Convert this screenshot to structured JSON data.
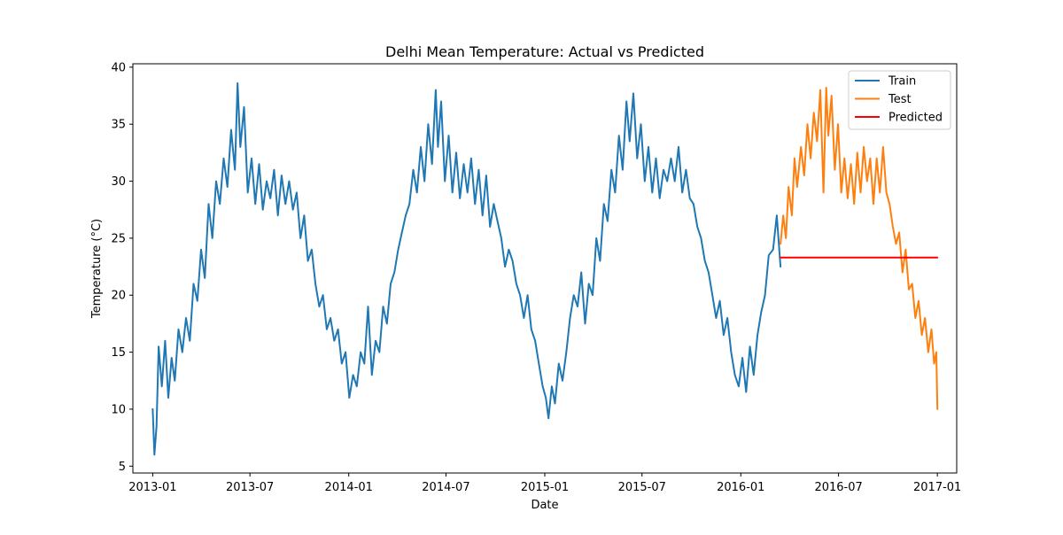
{
  "chart_data": {
    "type": "line",
    "title": "Delhi Mean Temperature: Actual vs Predicted",
    "xlabel": "Date",
    "ylabel": "Temperature (°C)",
    "x_range": [
      "2012-11-25",
      "2017-02-06"
    ],
    "ylim": [
      4.4,
      40.3
    ],
    "y_ticks": [
      5,
      10,
      15,
      20,
      25,
      30,
      35,
      40
    ],
    "x_ticks": [
      {
        "date": "2013-01-01",
        "label": "2013-01"
      },
      {
        "date": "2013-07-01",
        "label": "2013-07"
      },
      {
        "date": "2014-01-01",
        "label": "2014-01"
      },
      {
        "date": "2014-07-01",
        "label": "2014-07"
      },
      {
        "date": "2015-01-01",
        "label": "2015-01"
      },
      {
        "date": "2015-07-01",
        "label": "2015-07"
      },
      {
        "date": "2016-01-01",
        "label": "2016-01"
      },
      {
        "date": "2016-07-01",
        "label": "2016-07"
      },
      {
        "date": "2017-01-01",
        "label": "2017-01"
      }
    ],
    "grid": false,
    "legend_position": "top-right",
    "series": [
      {
        "name": "Train",
        "color": "#1f77b4",
        "points": [
          [
            "2013-01-01",
            10.0
          ],
          [
            "2013-01-04",
            6.0
          ],
          [
            "2013-01-08",
            8.5
          ],
          [
            "2013-01-12",
            15.5
          ],
          [
            "2013-01-18",
            12.0
          ],
          [
            "2013-01-24",
            16.0
          ],
          [
            "2013-01-30",
            11.0
          ],
          [
            "2013-02-05",
            14.5
          ],
          [
            "2013-02-11",
            12.5
          ],
          [
            "2013-02-18",
            17.0
          ],
          [
            "2013-02-25",
            15.0
          ],
          [
            "2013-03-04",
            18.0
          ],
          [
            "2013-03-11",
            16.0
          ],
          [
            "2013-03-18",
            21.0
          ],
          [
            "2013-03-25",
            19.5
          ],
          [
            "2013-04-01",
            24.0
          ],
          [
            "2013-04-08",
            21.5
          ],
          [
            "2013-04-15",
            28.0
          ],
          [
            "2013-04-22",
            25.0
          ],
          [
            "2013-04-29",
            30.0
          ],
          [
            "2013-05-06",
            28.0
          ],
          [
            "2013-05-13",
            32.0
          ],
          [
            "2013-05-20",
            29.5
          ],
          [
            "2013-05-27",
            34.5
          ],
          [
            "2013-06-03",
            31.0
          ],
          [
            "2013-06-08",
            38.6
          ],
          [
            "2013-06-13",
            33.0
          ],
          [
            "2013-06-20",
            36.5
          ],
          [
            "2013-06-27",
            29.0
          ],
          [
            "2013-07-04",
            32.0
          ],
          [
            "2013-07-11",
            28.0
          ],
          [
            "2013-07-18",
            31.5
          ],
          [
            "2013-07-25",
            27.5
          ],
          [
            "2013-08-01",
            30.0
          ],
          [
            "2013-08-08",
            28.5
          ],
          [
            "2013-08-15",
            31.0
          ],
          [
            "2013-08-22",
            27.0
          ],
          [
            "2013-08-29",
            30.5
          ],
          [
            "2013-09-05",
            28.0
          ],
          [
            "2013-09-12",
            30.0
          ],
          [
            "2013-09-19",
            27.5
          ],
          [
            "2013-09-26",
            29.0
          ],
          [
            "2013-10-03",
            25.0
          ],
          [
            "2013-10-10",
            27.0
          ],
          [
            "2013-10-17",
            23.0
          ],
          [
            "2013-10-24",
            24.0
          ],
          [
            "2013-10-31",
            21.0
          ],
          [
            "2013-11-07",
            19.0
          ],
          [
            "2013-11-14",
            20.0
          ],
          [
            "2013-11-21",
            17.0
          ],
          [
            "2013-11-28",
            18.0
          ],
          [
            "2013-12-05",
            16.0
          ],
          [
            "2013-12-12",
            17.0
          ],
          [
            "2013-12-19",
            14.0
          ],
          [
            "2013-12-26",
            15.0
          ],
          [
            "2014-01-02",
            11.0
          ],
          [
            "2014-01-09",
            13.0
          ],
          [
            "2014-01-16",
            12.0
          ],
          [
            "2014-01-23",
            15.0
          ],
          [
            "2014-01-30",
            14.0
          ],
          [
            "2014-02-06",
            19.0
          ],
          [
            "2014-02-13",
            13.0
          ],
          [
            "2014-02-20",
            16.0
          ],
          [
            "2014-02-27",
            15.0
          ],
          [
            "2014-03-06",
            19.0
          ],
          [
            "2014-03-13",
            17.5
          ],
          [
            "2014-03-20",
            21.0
          ],
          [
            "2014-03-27",
            22.0
          ],
          [
            "2014-04-03",
            24.0
          ],
          [
            "2014-04-10",
            25.5
          ],
          [
            "2014-04-17",
            27.0
          ],
          [
            "2014-04-24",
            28.0
          ],
          [
            "2014-05-01",
            31.0
          ],
          [
            "2014-05-08",
            29.0
          ],
          [
            "2014-05-15",
            33.0
          ],
          [
            "2014-05-22",
            30.0
          ],
          [
            "2014-05-29",
            35.0
          ],
          [
            "2014-06-05",
            31.5
          ],
          [
            "2014-06-12",
            38.0
          ],
          [
            "2014-06-16",
            33.0
          ],
          [
            "2014-06-22",
            37.0
          ],
          [
            "2014-06-29",
            30.0
          ],
          [
            "2014-07-06",
            34.0
          ],
          [
            "2014-07-13",
            29.0
          ],
          [
            "2014-07-20",
            32.5
          ],
          [
            "2014-07-27",
            28.5
          ],
          [
            "2014-08-03",
            31.5
          ],
          [
            "2014-08-10",
            29.0
          ],
          [
            "2014-08-17",
            32.0
          ],
          [
            "2014-08-24",
            28.0
          ],
          [
            "2014-08-31",
            31.0
          ],
          [
            "2014-09-07",
            27.0
          ],
          [
            "2014-09-14",
            30.5
          ],
          [
            "2014-09-21",
            26.0
          ],
          [
            "2014-09-28",
            28.0
          ],
          [
            "2014-10-05",
            26.5
          ],
          [
            "2014-10-12",
            25.0
          ],
          [
            "2014-10-19",
            22.5
          ],
          [
            "2014-10-26",
            24.0
          ],
          [
            "2014-11-02",
            23.0
          ],
          [
            "2014-11-09",
            21.0
          ],
          [
            "2014-11-16",
            20.0
          ],
          [
            "2014-11-23",
            18.0
          ],
          [
            "2014-11-30",
            20.0
          ],
          [
            "2014-12-07",
            17.0
          ],
          [
            "2014-12-14",
            16.0
          ],
          [
            "2014-12-21",
            14.0
          ],
          [
            "2014-12-28",
            12.0
          ],
          [
            "2015-01-03",
            11.0
          ],
          [
            "2015-01-08",
            9.2
          ],
          [
            "2015-01-14",
            12.0
          ],
          [
            "2015-01-20",
            10.5
          ],
          [
            "2015-01-27",
            14.0
          ],
          [
            "2015-02-03",
            12.5
          ],
          [
            "2015-02-10",
            15.0
          ],
          [
            "2015-02-17",
            18.0
          ],
          [
            "2015-02-24",
            20.0
          ],
          [
            "2015-03-03",
            19.0
          ],
          [
            "2015-03-10",
            22.0
          ],
          [
            "2015-03-17",
            17.5
          ],
          [
            "2015-03-24",
            21.0
          ],
          [
            "2015-03-31",
            20.0
          ],
          [
            "2015-04-07",
            25.0
          ],
          [
            "2015-04-14",
            23.0
          ],
          [
            "2015-04-21",
            28.0
          ],
          [
            "2015-04-28",
            26.5
          ],
          [
            "2015-05-05",
            31.0
          ],
          [
            "2015-05-12",
            29.0
          ],
          [
            "2015-05-19",
            34.0
          ],
          [
            "2015-05-26",
            31.0
          ],
          [
            "2015-06-02",
            37.0
          ],
          [
            "2015-06-08",
            33.5
          ],
          [
            "2015-06-15",
            37.7
          ],
          [
            "2015-06-22",
            32.0
          ],
          [
            "2015-06-29",
            35.0
          ],
          [
            "2015-07-06",
            30.0
          ],
          [
            "2015-07-13",
            33.0
          ],
          [
            "2015-07-20",
            29.0
          ],
          [
            "2015-07-27",
            32.0
          ],
          [
            "2015-08-03",
            28.5
          ],
          [
            "2015-08-10",
            31.0
          ],
          [
            "2015-08-17",
            30.0
          ],
          [
            "2015-08-24",
            32.0
          ],
          [
            "2015-08-31",
            30.0
          ],
          [
            "2015-09-07",
            33.0
          ],
          [
            "2015-09-14",
            29.0
          ],
          [
            "2015-09-21",
            31.0
          ],
          [
            "2015-09-28",
            28.5
          ],
          [
            "2015-10-05",
            28.0
          ],
          [
            "2015-10-12",
            26.0
          ],
          [
            "2015-10-19",
            25.0
          ],
          [
            "2015-10-26",
            23.0
          ],
          [
            "2015-11-02",
            22.0
          ],
          [
            "2015-11-09",
            20.0
          ],
          [
            "2015-11-16",
            18.0
          ],
          [
            "2015-11-23",
            19.5
          ],
          [
            "2015-11-30",
            16.5
          ],
          [
            "2015-12-07",
            18.0
          ],
          [
            "2015-12-14",
            15.0
          ],
          [
            "2015-12-21",
            13.0
          ],
          [
            "2015-12-28",
            12.0
          ],
          [
            "2016-01-04",
            14.5
          ],
          [
            "2016-01-11",
            11.5
          ],
          [
            "2016-01-18",
            15.5
          ],
          [
            "2016-01-25",
            13.0
          ],
          [
            "2016-02-01",
            16.5
          ],
          [
            "2016-02-08",
            18.5
          ],
          [
            "2016-02-15",
            20.0
          ],
          [
            "2016-02-22",
            23.5
          ],
          [
            "2016-03-01",
            24.0
          ],
          [
            "2016-03-08",
            27.0
          ],
          [
            "2016-03-15",
            22.5
          ]
        ]
      },
      {
        "name": "Test",
        "color": "#ff7f0e",
        "points": [
          [
            "2016-03-15",
            24.5
          ],
          [
            "2016-03-20",
            27.0
          ],
          [
            "2016-03-25",
            25.0
          ],
          [
            "2016-03-30",
            29.5
          ],
          [
            "2016-04-05",
            27.0
          ],
          [
            "2016-04-10",
            32.0
          ],
          [
            "2016-04-15",
            29.5
          ],
          [
            "2016-04-22",
            33.0
          ],
          [
            "2016-04-28",
            30.5
          ],
          [
            "2016-05-04",
            35.0
          ],
          [
            "2016-05-10",
            32.0
          ],
          [
            "2016-05-16",
            36.0
          ],
          [
            "2016-05-22",
            33.5
          ],
          [
            "2016-05-28",
            38.0
          ],
          [
            "2016-06-03",
            29.0
          ],
          [
            "2016-06-08",
            38.2
          ],
          [
            "2016-06-12",
            34.0
          ],
          [
            "2016-06-18",
            37.5
          ],
          [
            "2016-06-24",
            31.0
          ],
          [
            "2016-06-30",
            35.0
          ],
          [
            "2016-07-06",
            29.0
          ],
          [
            "2016-07-12",
            32.0
          ],
          [
            "2016-07-18",
            28.5
          ],
          [
            "2016-07-24",
            31.5
          ],
          [
            "2016-07-30",
            28.0
          ],
          [
            "2016-08-05",
            32.5
          ],
          [
            "2016-08-11",
            29.0
          ],
          [
            "2016-08-17",
            33.0
          ],
          [
            "2016-08-23",
            30.0
          ],
          [
            "2016-08-29",
            32.0
          ],
          [
            "2016-09-04",
            28.0
          ],
          [
            "2016-09-10",
            32.0
          ],
          [
            "2016-09-16",
            29.0
          ],
          [
            "2016-09-22",
            33.0
          ],
          [
            "2016-09-28",
            29.0
          ],
          [
            "2016-10-04",
            28.0
          ],
          [
            "2016-10-10",
            26.0
          ],
          [
            "2016-10-16",
            24.5
          ],
          [
            "2016-10-22",
            25.5
          ],
          [
            "2016-10-28",
            22.0
          ],
          [
            "2016-11-03",
            24.0
          ],
          [
            "2016-11-09",
            20.5
          ],
          [
            "2016-11-15",
            21.0
          ],
          [
            "2016-11-21",
            18.0
          ],
          [
            "2016-11-27",
            19.5
          ],
          [
            "2016-12-03",
            16.5
          ],
          [
            "2016-12-09",
            18.0
          ],
          [
            "2016-12-15",
            15.0
          ],
          [
            "2016-12-21",
            17.0
          ],
          [
            "2016-12-26",
            14.0
          ],
          [
            "2016-12-30",
            15.0
          ],
          [
            "2017-01-01",
            10.0
          ]
        ]
      },
      {
        "name": "Predicted",
        "color": "#ff0000",
        "points": [
          [
            "2016-03-15",
            23.3
          ],
          [
            "2017-01-01",
            23.3
          ]
        ]
      }
    ]
  }
}
